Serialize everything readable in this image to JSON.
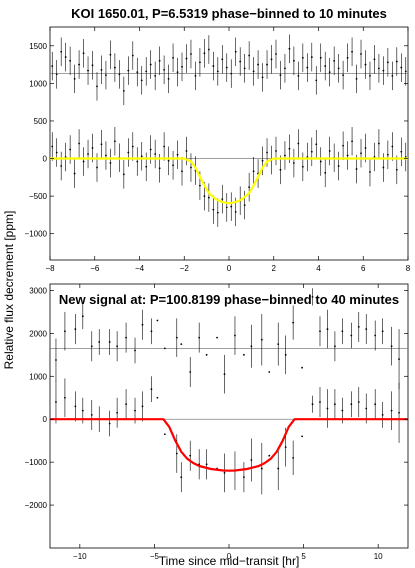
{
  "figure": {
    "ylabel": "Relative flux decrement [ppm]",
    "xlabel": "Time since mid−transit [hr]"
  },
  "chart_data": [
    {
      "type": "scatter",
      "title": "KOI 1650.01, P=6.5319 phase−binned to 10 minutes",
      "xlabel": "",
      "ylabel": "Relative flux decrement [ppm]",
      "xlim": [
        -8,
        8
      ],
      "ylim": [
        -1350,
        1750
      ],
      "xticks": [
        -8,
        -6,
        -4,
        -2,
        0,
        2,
        4,
        6,
        8
      ],
      "yticks": [
        -1000,
        -500,
        0,
        500,
        1000,
        1500
      ],
      "grid": false,
      "reference_lines": [
        0,
        1130
      ],
      "model": {
        "color": "#ffff00",
        "x": [
          -8,
          -2,
          -1.7,
          -1.5,
          -1.3,
          -1.1,
          -0.9,
          -0.6,
          -0.3,
          0,
          0.3,
          0.6,
          0.9,
          1.1,
          1.3,
          1.5,
          1.7,
          2,
          8
        ],
        "y": [
          0,
          0,
          -40,
          -120,
          -240,
          -360,
          -460,
          -540,
          -580,
          -595,
          -580,
          -540,
          -460,
          -360,
          -240,
          -120,
          -40,
          0,
          0
        ]
      },
      "series": [
        {
          "color": "#000000",
          "x": [
            -7.9,
            -7.7,
            -7.5,
            -7.3,
            -7.1,
            -6.9,
            -6.7,
            -6.5,
            -6.3,
            -6.1,
            -5.9,
            -5.7,
            -5.5,
            -5.3,
            -5.1,
            -4.9,
            -4.7,
            -4.5,
            -4.3,
            -4.1,
            -3.9,
            -3.7,
            -3.5,
            -3.3,
            -3.1,
            -2.9,
            -2.7,
            -2.5,
            -2.3,
            -2.1,
            -1.9,
            -1.7,
            -1.5,
            -1.3,
            -1.1,
            -0.9,
            -0.7,
            -0.5,
            -0.3,
            -0.1,
            0.1,
            0.3,
            0.5,
            0.7,
            0.9,
            1.1,
            1.3,
            1.5,
            1.7,
            1.9,
            2.1,
            2.3,
            2.5,
            2.7,
            2.9,
            3.1,
            3.3,
            3.5,
            3.7,
            3.9,
            4.1,
            4.3,
            4.5,
            4.7,
            4.9,
            5.1,
            5.3,
            5.5,
            5.7,
            5.9,
            6.1,
            6.3,
            6.5,
            6.7,
            6.9,
            7.1,
            7.3,
            7.5,
            7.7,
            7.9
          ],
          "y": [
            1230,
            1120,
            1420,
            1350,
            1300,
            1060,
            1250,
            1400,
            1170,
            1240,
            960,
            1180,
            1110,
            1380,
            1210,
            1120,
            900,
            1170,
            1370,
            1150,
            1040,
            1160,
            1250,
            1100,
            1300,
            1180,
            1060,
            1340,
            1150,
            1220,
            1330,
            1390,
            1100,
            1280,
            1400,
            1450,
            1230,
            1160,
            1320,
            1210,
            1130,
            1420,
            1290,
            1200,
            1370,
            1160,
            1250,
            1080,
            1250,
            1320,
            1390,
            1110,
            1200,
            1460,
            1300,
            1100,
            1340,
            1210,
            1350,
            1040,
            1340,
            1230,
            1150,
            1300,
            1200,
            1110,
            1340,
            1420,
            1060,
            1390,
            1250,
            1100,
            1320,
            1200,
            1170,
            1280,
            1100,
            1290,
            1210,
            1160
          ],
          "err": 190
        },
        {
          "color": "#000000",
          "x": [
            -7.9,
            -7.7,
            -7.5,
            -7.3,
            -7.1,
            -6.9,
            -6.7,
            -6.5,
            -6.3,
            -6.1,
            -5.9,
            -5.7,
            -5.5,
            -5.3,
            -5.1,
            -4.9,
            -4.7,
            -4.5,
            -4.3,
            -4.1,
            -3.9,
            -3.7,
            -3.5,
            -3.3,
            -3.1,
            -2.9,
            -2.7,
            -2.5,
            -2.3,
            -2.1,
            -1.9,
            -1.7,
            -1.5,
            -1.3,
            -1.1,
            -0.9,
            -0.7,
            -0.5,
            -0.3,
            -0.1,
            0.1,
            0.3,
            0.5,
            0.7,
            0.9,
            1.1,
            1.3,
            1.5,
            1.7,
            1.9,
            2.1,
            2.3,
            2.5,
            2.7,
            2.9,
            3.1,
            3.3,
            3.5,
            3.7,
            3.9,
            4.1,
            4.3,
            4.5,
            4.7,
            4.9,
            5.1,
            5.3,
            5.5,
            5.7,
            5.9,
            6.1,
            6.3,
            6.5,
            6.7,
            6.9,
            7.1,
            7.3,
            7.5,
            7.7,
            7.9
          ],
          "y": [
            160,
            80,
            -100,
            20,
            120,
            -200,
            200,
            -40,
            60,
            140,
            -120,
            190,
            40,
            -60,
            230,
            10,
            -210,
            80,
            160,
            -40,
            30,
            -110,
            120,
            60,
            -130,
            160,
            -30,
            -90,
            50,
            -170,
            100,
            -120,
            -160,
            -360,
            -500,
            -520,
            -680,
            -720,
            -540,
            -650,
            -640,
            -710,
            -560,
            -620,
            -380,
            -170,
            -200,
            -30,
            80,
            -20,
            100,
            -150,
            40,
            130,
            -60,
            200,
            -110,
            20,
            90,
            190,
            -40,
            -190,
            100,
            10,
            -100,
            170,
            40,
            230,
            -140,
            70,
            140,
            -180,
            20,
            200,
            -120,
            50,
            160,
            -150,
            90,
            20
          ],
          "err": 190
        }
      ]
    },
    {
      "type": "scatter",
      "title": "New signal at: P=100.8199 phase−binned to 40 minutes",
      "xlabel": "Time since mid−transit [hr]",
      "ylabel": "Relative flux decrement [ppm]",
      "xlim": [
        -12,
        12
      ],
      "ylim": [
        -3000,
        3150
      ],
      "xticks": [
        -10,
        -5,
        0,
        5,
        10
      ],
      "yticks": [
        -2000,
        -1000,
        0,
        1000,
        2000,
        3000
      ],
      "grid": false,
      "reference_lines": [
        0,
        1650
      ],
      "model": {
        "color": "#ff0000",
        "x": [
          -12,
          -4.4,
          -4.0,
          -3.6,
          -3.2,
          -2.8,
          -2.4,
          -2.0,
          -1.2,
          -0.4,
          0,
          0.4,
          1.2,
          2.0,
          2.4,
          2.8,
          3.2,
          3.6,
          4.0,
          4.4,
          12
        ],
        "y": [
          0,
          0,
          -180,
          -500,
          -760,
          -920,
          -1020,
          -1090,
          -1160,
          -1195,
          -1200,
          -1195,
          -1160,
          -1090,
          -1020,
          -920,
          -760,
          -500,
          -180,
          0,
          0
        ]
      },
      "series": [
        {
          "color": "#000000",
          "x": [
            -11.6,
            -11.0,
            -10.3,
            -9.8,
            -9.2,
            -8.7,
            -8.0,
            -7.5,
            -6.9,
            -6.3,
            -5.8,
            -5.2,
            -4.8,
            -4.3,
            -3.5,
            -3.2,
            -2.6,
            -2.0,
            -1.5,
            -0.8,
            -0.3,
            0.4,
            1.0,
            1.5,
            2.2,
            2.7,
            3.3,
            3.8,
            4.3,
            4.9,
            5.6,
            6.1,
            6.6,
            7.1,
            7.6,
            8.2,
            8.7,
            9.2,
            9.8,
            10.3,
            10.9,
            11.4
          ],
          "y": [
            1380,
            2050,
            2100,
            2400,
            1700,
            1800,
            1800,
            1700,
            1900,
            1600,
            2200,
            2050,
            2300,
            1650,
            1900,
            1750,
            1100,
            1900,
            1500,
            1900,
            1050,
            1950,
            1500,
            1700,
            1850,
            1100,
            1750,
            1500,
            2250,
            1200,
            2850,
            2050,
            2100,
            1700,
            2050,
            1950,
            2150,
            2100,
            1950,
            2050,
            1700,
            1400
          ],
          "err": [
            500,
            450,
            350,
            300,
            350,
            300,
            300,
            350,
            350,
            300,
            350,
            300,
            0,
            0,
            450,
            0,
            350,
            350,
            0,
            0,
            450,
            450,
            0,
            500,
            600,
            0,
            500,
            450,
            400,
            0,
            200,
            350,
            450,
            350,
            300,
            300,
            350,
            350,
            350,
            300,
            450,
            700
          ]
        },
        {
          "color": "#000000",
          "x": [
            -11.6,
            -11.0,
            -10.3,
            -9.8,
            -9.2,
            -8.7,
            -8.0,
            -7.5,
            -6.9,
            -6.3,
            -5.8,
            -5.2,
            -4.8,
            -4.3,
            -3.5,
            -3.2,
            -2.6,
            -2.0,
            -1.5,
            -0.8,
            -0.3,
            0.4,
            1.0,
            1.5,
            2.2,
            2.7,
            3.3,
            3.8,
            4.3,
            4.9,
            5.6,
            6.1,
            6.6,
            7.1,
            7.6,
            8.2,
            8.7,
            9.2,
            9.8,
            10.3,
            10.9,
            11.4
          ],
          "y": [
            400,
            500,
            300,
            200,
            100,
            0,
            -100,
            150,
            350,
            200,
            300,
            700,
            500,
            -350,
            -800,
            -1350,
            -850,
            -1050,
            -1050,
            -1150,
            -1250,
            -1200,
            -1350,
            -950,
            -1150,
            -850,
            -1150,
            -650,
            -900,
            -400,
            350,
            400,
            250,
            350,
            200,
            350,
            400,
            250,
            350,
            100,
            200,
            150
          ],
          "err": [
            500,
            450,
            350,
            300,
            350,
            300,
            300,
            350,
            350,
            300,
            350,
            300,
            0,
            0,
            450,
            350,
            350,
            350,
            350,
            0,
            450,
            450,
            350,
            500,
            600,
            0,
            500,
            450,
            400,
            0,
            200,
            350,
            450,
            350,
            300,
            300,
            350,
            350,
            350,
            300,
            450,
            700
          ]
        }
      ]
    }
  ]
}
